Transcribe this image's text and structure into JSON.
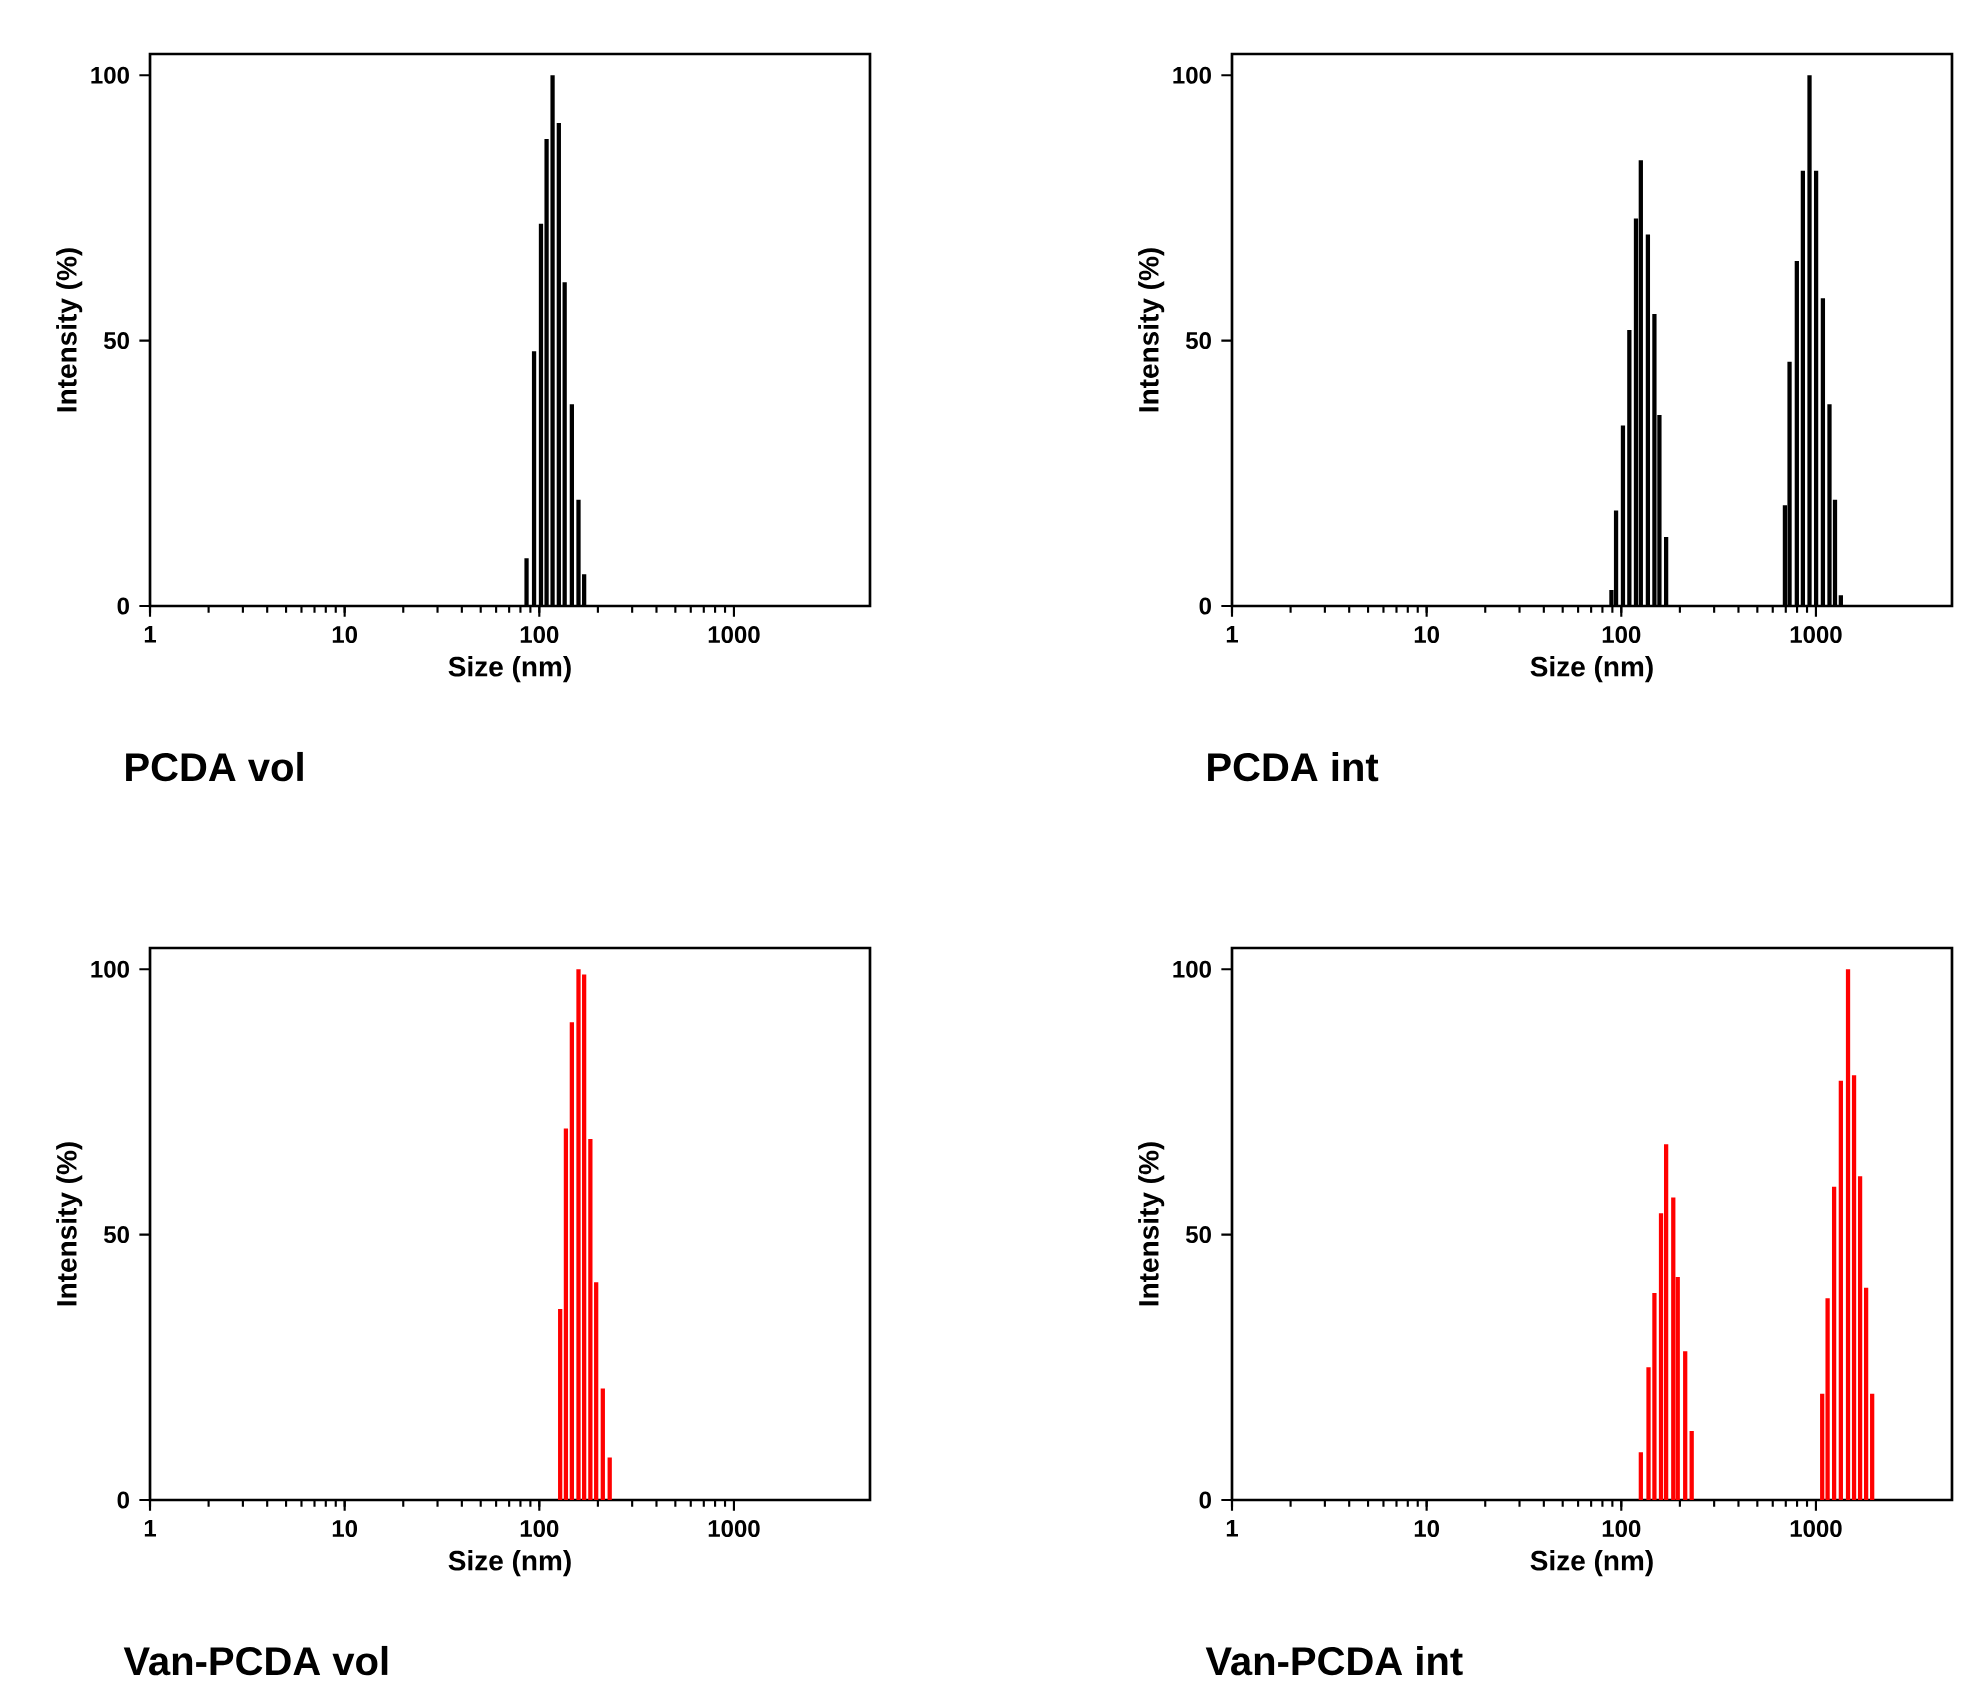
{
  "chart_data": [
    {
      "type": "bar",
      "title": "PCDA vol",
      "xlabel": "Size (nm)",
      "ylabel": "Intensity (%)",
      "log": "x",
      "color": "#000000",
      "xlim": [
        1,
        5000
      ],
      "ylim": [
        0,
        104
      ],
      "xticks": [
        1,
        10,
        100,
        1000
      ],
      "yticks": [
        0,
        50,
        100
      ],
      "x": [
        86,
        94,
        102,
        109,
        117,
        126,
        135,
        147,
        159,
        170
      ],
      "values": [
        9,
        48,
        72,
        88,
        100,
        91,
        61,
        38,
        20,
        6
      ]
    },
    {
      "type": "bar",
      "title": "PCDA int",
      "xlabel": "Size (nm)",
      "ylabel": "Intensity (%)",
      "log": "x",
      "color": "#000000",
      "xlim": [
        1,
        5000
      ],
      "ylim": [
        0,
        104
      ],
      "xticks": [
        1,
        10,
        100,
        1000
      ],
      "yticks": [
        0,
        50,
        100
      ],
      "x": [
        89,
        94,
        102,
        110,
        119,
        126,
        137,
        148,
        157,
        170,
        693,
        732,
        798,
        857,
        927,
        1002,
        1086,
        1174,
        1253,
        1343
      ],
      "values": [
        3,
        18,
        34,
        52,
        73,
        84,
        70,
        55,
        36,
        13,
        19,
        46,
        65,
        82,
        100,
        82,
        58,
        38,
        20,
        2
      ]
    },
    {
      "type": "bar",
      "title": "Van-PCDA vol",
      "xlabel": "Size (nm)",
      "ylabel": "Intensity (%)",
      "log": "x",
      "color": "#ff0000",
      "xlim": [
        1,
        5000
      ],
      "ylim": [
        0,
        104
      ],
      "xticks": [
        1,
        10,
        100,
        1000
      ],
      "yticks": [
        0,
        50,
        100
      ],
      "x": [
        128,
        137,
        147,
        159,
        170,
        183,
        196,
        212,
        230
      ],
      "values": [
        36,
        70,
        90,
        100,
        99,
        68,
        41,
        21,
        8
      ]
    },
    {
      "type": "bar",
      "title": "Van-PCDA int",
      "xlabel": "Size (nm)",
      "ylabel": "Intensity (%)",
      "log": "x",
      "color": "#ff0000",
      "xlim": [
        1,
        5000
      ],
      "ylim": [
        0,
        104
      ],
      "xticks": [
        1,
        10,
        100,
        1000
      ],
      "yticks": [
        0,
        50,
        100
      ],
      "x": [
        126,
        138,
        148,
        160,
        170,
        185,
        195,
        213,
        230,
        1077,
        1148,
        1240,
        1343,
        1462,
        1570,
        1686,
        1811,
        1945
      ],
      "values": [
        9,
        25,
        39,
        54,
        67,
        57,
        42,
        28,
        13,
        20,
        38,
        59,
        79,
        100,
        80,
        61,
        40,
        20
      ]
    }
  ]
}
